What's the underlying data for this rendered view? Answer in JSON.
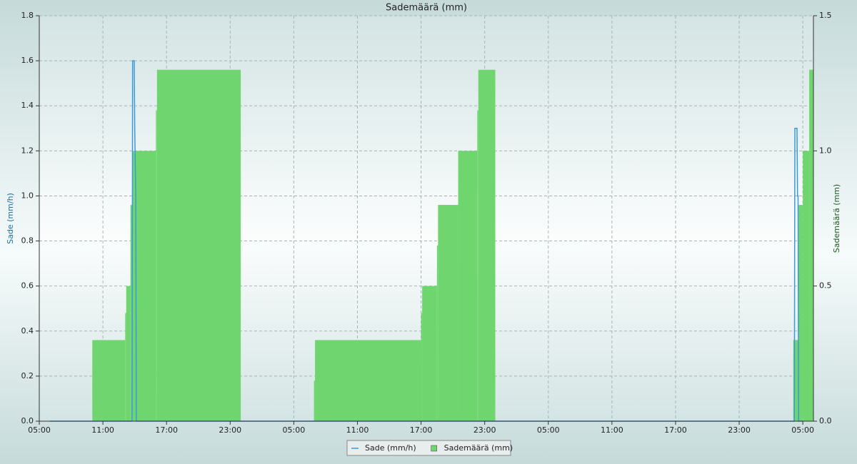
{
  "chart_data": {
    "type": "line",
    "title": "Sademäärä (mm)",
    "ylabel": "Sade (mm/h)",
    "y2label": "Sademäärä (mm)",
    "xlim": [
      0,
      73
    ],
    "xticks": [
      {
        "value": 0,
        "label": "05:00"
      },
      {
        "value": 6,
        "label": "11:00"
      },
      {
        "value": 12,
        "label": "17:00"
      },
      {
        "value": 18,
        "label": "23:00"
      },
      {
        "value": 24,
        "label": "05:00"
      },
      {
        "value": 30,
        "label": "11:00"
      },
      {
        "value": 36,
        "label": "17:00"
      },
      {
        "value": 42,
        "label": "23:00"
      },
      {
        "value": 48,
        "label": "05:00"
      },
      {
        "value": 54,
        "label": "11:00"
      },
      {
        "value": 60,
        "label": "17:00"
      },
      {
        "value": 66,
        "label": "23:00"
      },
      {
        "value": 72,
        "label": "05:00"
      }
    ],
    "ylim": [
      0,
      1.8
    ],
    "yticks": [
      {
        "value": 0,
        "label": "0.0"
      },
      0.2,
      0.4,
      0.6,
      0.8,
      {
        "value": 1,
        "label": "1.0"
      },
      1.2,
      1.4,
      1.6,
      1.8
    ],
    "y2lim": [
      0,
      1.5
    ],
    "y2ticks": [
      {
        "value": 0,
        "label": "0.0"
      },
      0.5,
      {
        "value": 1,
        "label": "1.0"
      },
      1.5
    ],
    "grid": true,
    "legend": "bottom",
    "series": [
      {
        "name": "Sademäärä (mm)",
        "color": "#6fd66f",
        "type": "step-area",
        "axis": "y2",
        "x": [
          0,
          5,
          8.1,
          8.2,
          8.6,
          8.8,
          11,
          11.1,
          19,
          25.9,
          26,
          36,
          36.1,
          37.5,
          37.6,
          39.5,
          41.3,
          41.4,
          43,
          71.1,
          71.6,
          72,
          72.6
        ],
        "values": [
          0,
          0.3,
          0.4,
          0.5,
          0.8,
          1.0,
          1.15,
          1.3,
          0,
          0.15,
          0.3,
          0.4,
          0.5,
          0.65,
          0.8,
          1.0,
          1.15,
          1.3,
          0,
          0.3,
          0.8,
          1.0,
          1.3
        ]
      },
      {
        "name": "Sade (mm/h)",
        "color": "#3a9ad9",
        "type": "line",
        "x": [
          1,
          8.75,
          8.8,
          8.95,
          9.0,
          9.1,
          9.15,
          71.2,
          71.25,
          71.45,
          71.5,
          71.55,
          71.6,
          72
        ],
        "values": [
          0,
          0,
          1.6,
          1.6,
          1.3,
          1.0,
          0,
          0,
          1.3,
          1.3,
          1.0,
          1.0,
          0,
          0
        ]
      }
    ]
  }
}
